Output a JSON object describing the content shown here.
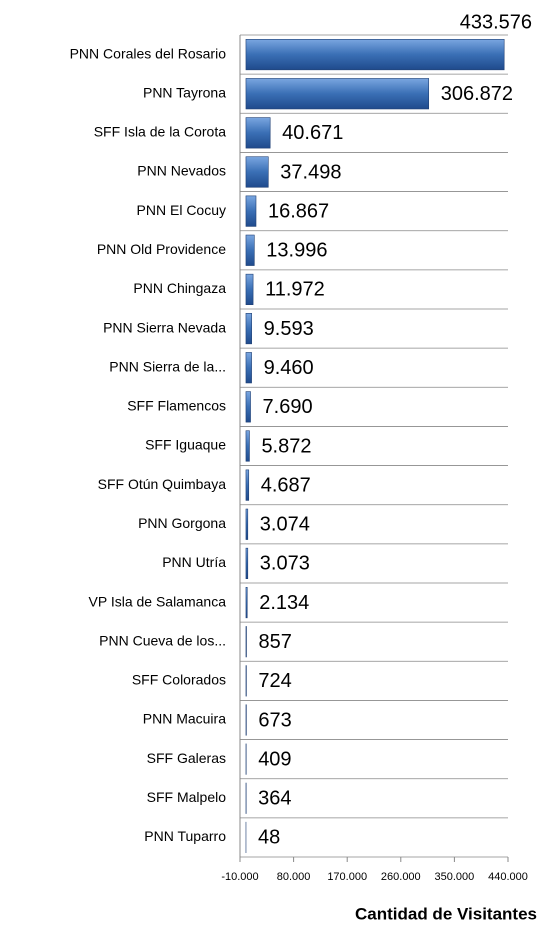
{
  "chart_data": {
    "type": "bar",
    "orientation": "horizontal",
    "x_axis_title": "Cantidad de Visitantes",
    "categories": [
      "PNN Corales del Rosario",
      "PNN Tayrona",
      "SFF Isla de la Corota",
      "PNN Nevados",
      "PNN El Cocuy",
      "PNN Old Providence",
      "PNN Chingaza",
      "PNN Sierra Nevada",
      "PNN Sierra de la...",
      "SFF Flamencos",
      "SFF Iguaque",
      "SFF Otún Quimbaya",
      "PNN Gorgona",
      "PNN Utría",
      "VP Isla de Salamanca",
      "PNN Cueva de los...",
      "SFF Colorados",
      "PNN Macuira",
      "SFF Galeras",
      "SFF Malpelo",
      "PNN Tuparro"
    ],
    "values": [
      433576,
      306872,
      40671,
      37498,
      16867,
      13996,
      11972,
      9593,
      9460,
      7690,
      5872,
      4687,
      3074,
      3073,
      2134,
      857,
      724,
      673,
      409,
      364,
      48
    ],
    "value_labels": [
      "433.576",
      "306.872",
      "40.671",
      "37.498",
      "16.867",
      "13.996",
      "11.972",
      "9.593",
      "9.460",
      "7.690",
      "5.872",
      "4.687",
      "3.074",
      "3.073",
      "2.134",
      "857",
      "724",
      "673",
      "409",
      "364",
      "48"
    ],
    "color": "#3a6fb5",
    "xlim": [
      -10000,
      440000
    ],
    "xticks": [
      {
        "value": -10000,
        "label": "-10.000"
      },
      {
        "value": 80000,
        "label": "80.000"
      },
      {
        "value": 170000,
        "label": "170.000"
      },
      {
        "value": 260000,
        "label": "260.000"
      },
      {
        "value": 350000,
        "label": "350.000"
      },
      {
        "value": 440000,
        "label": "440.000"
      }
    ]
  }
}
